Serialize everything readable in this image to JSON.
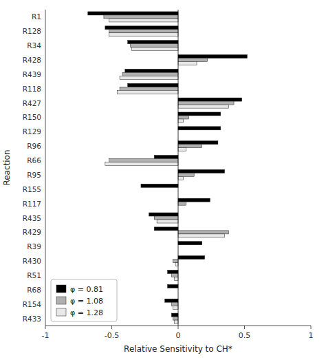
{
  "chart_data": {
    "type": "bar",
    "orientation": "horizontal",
    "categories": [
      "R1",
      "R128",
      "R34",
      "R428",
      "R439",
      "R118",
      "R427",
      "R150",
      "R129",
      "R96",
      "R66",
      "R95",
      "R155",
      "R117",
      "R435",
      "R429",
      "R39",
      "R430",
      "R51",
      "R68",
      "R154",
      "R433"
    ],
    "series": [
      {
        "name": "φ = 0.81",
        "color": "#000000",
        "values": [
          -0.68,
          -0.55,
          -0.38,
          0.52,
          -0.4,
          -0.38,
          0.48,
          0.32,
          0.32,
          0.3,
          -0.18,
          0.35,
          -0.28,
          0.24,
          -0.22,
          -0.18,
          0.18,
          0.2,
          -0.08,
          -0.08,
          -0.1,
          -0.05
        ]
      },
      {
        "name": "φ = 1.08",
        "color": "#b0b0b0",
        "values": [
          -0.56,
          -0.52,
          -0.36,
          0.22,
          -0.42,
          -0.44,
          0.42,
          0.08,
          0.0,
          0.18,
          -0.52,
          0.12,
          0.0,
          0.06,
          -0.18,
          0.38,
          0.0,
          -0.04,
          -0.05,
          0.0,
          -0.05,
          -0.04
        ]
      },
      {
        "name": "φ = 1.28",
        "color": "#e8e8e8",
        "values": [
          -0.52,
          -0.52,
          -0.35,
          0.14,
          -0.44,
          -0.46,
          0.38,
          0.04,
          0.0,
          0.06,
          -0.55,
          0.04,
          0.0,
          0.0,
          -0.16,
          0.35,
          0.0,
          -0.02,
          -0.03,
          0.0,
          -0.04,
          -0.03
        ]
      }
    ],
    "xlim": [
      -1,
      1
    ],
    "xticks": [
      -1,
      -0.5,
      0,
      0.5,
      1
    ],
    "xlabel": "Relative Sensitivity to CH*",
    "ylabel": "Reaction",
    "legend": "lower left"
  }
}
